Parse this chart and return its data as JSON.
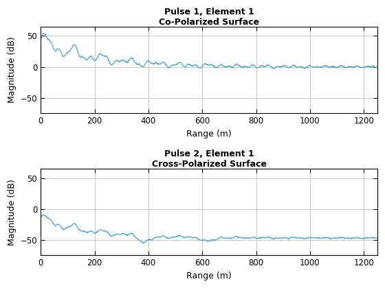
{
  "title1": "Pulse 1, Element 1\nCo-Polarized Surface",
  "title2": "Pulse 2, Element 1\nCross-Polarized Surface",
  "xlabel": "Range (m)",
  "ylabel": "Magnitude (dB)",
  "line_color": "#4daacc",
  "xlim": [
    0,
    1250
  ],
  "ylim1": [
    -75,
    65
  ],
  "ylim2": [
    -75,
    65
  ],
  "yticks1": [
    -50,
    0,
    50
  ],
  "yticks2": [
    -50,
    0,
    50
  ],
  "xticks": [
    0,
    200,
    400,
    600,
    800,
    1000,
    1200
  ],
  "line_width": 0.9,
  "bg_color": "#ffffff",
  "grid_color": "#c0c0c0"
}
